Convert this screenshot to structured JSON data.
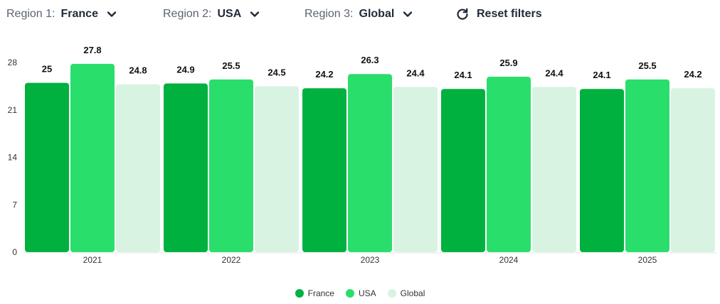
{
  "filters": [
    {
      "label": "Region 1:",
      "value": "France"
    },
    {
      "label": "Region 2:",
      "value": "USA"
    },
    {
      "label": "Region 3:",
      "value": "Global"
    }
  ],
  "reset": {
    "label": "Reset filters"
  },
  "icons": {
    "dropdown": "chevron-down-icon",
    "reset": "refresh-icon"
  },
  "chart_data": {
    "type": "bar",
    "categories": [
      "2021",
      "2022",
      "2023",
      "2024",
      "2025"
    ],
    "series": [
      {
        "name": "France",
        "color": "#00b140",
        "values": [
          25,
          24.9,
          24.2,
          24.1,
          24.1
        ]
      },
      {
        "name": "USA",
        "color": "#2ade6c",
        "values": [
          27.8,
          25.5,
          26.3,
          25.9,
          25.5
        ]
      },
      {
        "name": "Global",
        "color": "#d8f3e2",
        "values": [
          24.8,
          24.5,
          24.4,
          24.4,
          24.2
        ]
      }
    ],
    "yticks": [
      0,
      7,
      14,
      21,
      28
    ],
    "ylim": [
      0,
      28
    ],
    "grid": false,
    "legend": "bottom",
    "data_labels": true
  }
}
